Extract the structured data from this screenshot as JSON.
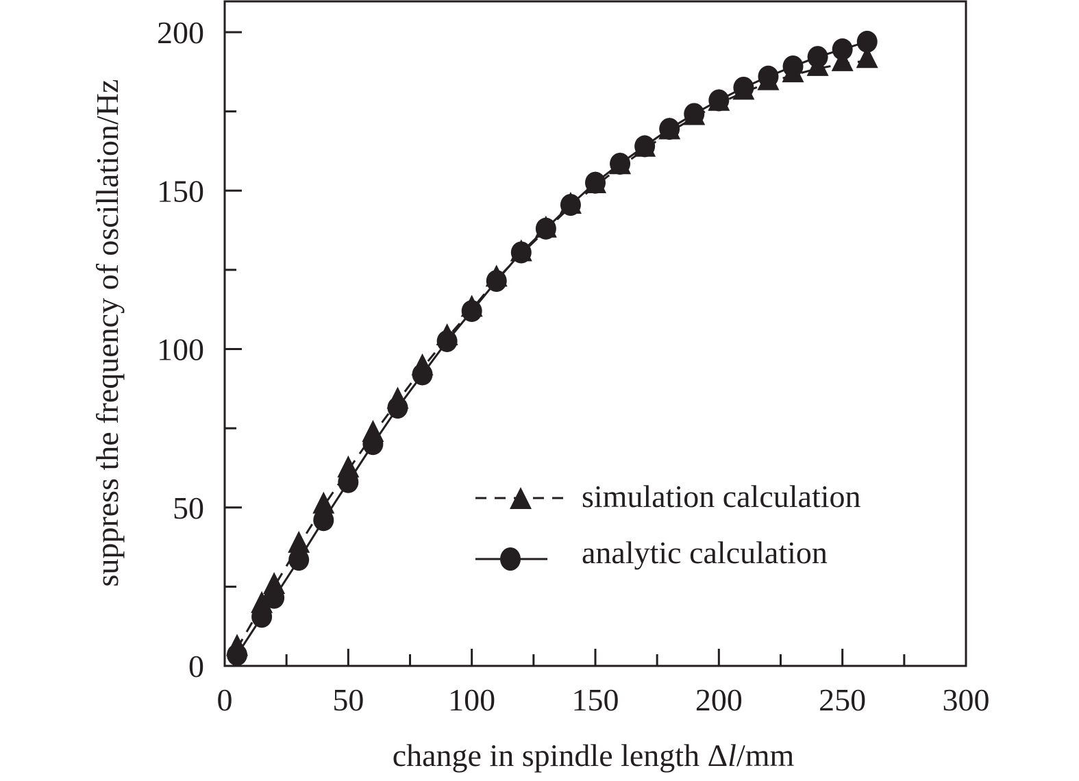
{
  "chart_data": {
    "type": "line",
    "title": "",
    "xlabel": "change in spindle length Δl/mm",
    "xlabel_parts": {
      "prefix": "change in spindle length Δ",
      "italic": "l",
      "suffix": "/mm"
    },
    "ylabel": "suppress the frequency of oscillation/Hz",
    "xlim": [
      0,
      300
    ],
    "ylim": [
      0,
      200
    ],
    "x_major_ticks": [
      0,
      50,
      100,
      150,
      200,
      250,
      300
    ],
    "x_minor_ticks": [
      25,
      75,
      125,
      175,
      225,
      275
    ],
    "x_tick_labels": [
      "0",
      "50",
      "100",
      "150",
      "200",
      "250",
      "300"
    ],
    "y_major_ticks": [
      0,
      50,
      100,
      150,
      200
    ],
    "y_minor_ticks": [
      25,
      75,
      125,
      175
    ],
    "y_tick_labels": [
      "0",
      "50",
      "100",
      "150",
      "200"
    ],
    "grid": false,
    "legend_position": "lower-right",
    "colors": {
      "ink": "#231f20"
    },
    "series": [
      {
        "name": "simulation calculation",
        "line_style": "dashed",
        "marker": "triangle",
        "x": [
          5,
          15,
          20,
          30,
          40,
          50,
          60,
          70,
          80,
          90,
          100,
          110,
          120,
          130,
          140,
          150,
          160,
          170,
          180,
          190,
          200,
          210,
          220,
          230,
          240,
          250,
          260
        ],
        "y": [
          5.5,
          19,
          25,
          38,
          50.4,
          61.8,
          73,
          83.5,
          94,
          103.5,
          112.5,
          122,
          130,
          137.5,
          145,
          151.5,
          157.5,
          163,
          168.5,
          173,
          177.5,
          181,
          184,
          186.5,
          188.5,
          190,
          191
        ]
      },
      {
        "name": "analytic calculation",
        "line_style": "solid",
        "marker": "circle",
        "x": [
          5,
          15,
          20,
          30,
          40,
          50,
          60,
          70,
          80,
          90,
          100,
          110,
          120,
          130,
          140,
          150,
          160,
          170,
          180,
          190,
          200,
          210,
          220,
          230,
          240,
          250,
          260
        ],
        "y": [
          3.5,
          15.5,
          21.5,
          33.5,
          46,
          58,
          70,
          81.5,
          92,
          102.5,
          112,
          121.5,
          130.5,
          138,
          145.5,
          152.5,
          158.5,
          164,
          169.5,
          174.2,
          178.5,
          182.5,
          186,
          189.2,
          192.2,
          194.6,
          197
        ]
      }
    ]
  }
}
